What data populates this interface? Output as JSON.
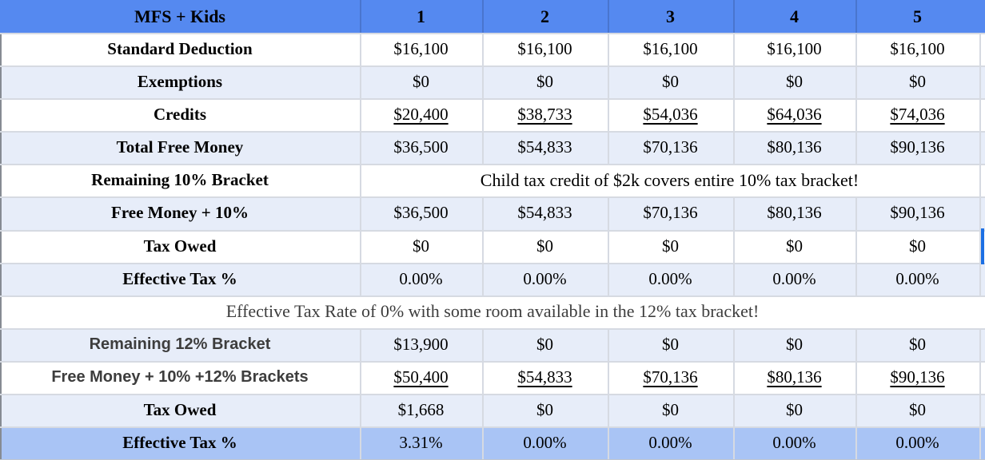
{
  "table": {
    "header": {
      "title": "MFS + Kids",
      "columns": [
        "1",
        "2",
        "3",
        "4",
        "5"
      ]
    },
    "rows": [
      {
        "label": "Standard Deduction",
        "values": [
          "$16,100",
          "$16,100",
          "$16,100",
          "$16,100",
          "$16,100"
        ]
      },
      {
        "label": "Exemptions",
        "values": [
          "$0",
          "$0",
          "$0",
          "$0",
          "$0"
        ]
      },
      {
        "label": "Credits",
        "underlined": true,
        "values": [
          "$20,400",
          "$38,733",
          "$54,036",
          "$64,036",
          "$74,036"
        ]
      },
      {
        "label": "Total Free Money",
        "values": [
          "$36,500",
          "$54,833",
          "$70,136",
          "$80,136",
          "$90,136"
        ]
      },
      {
        "label": "Remaining 10% Bracket",
        "note": "Child tax credit of $2k covers entire 10% tax bracket!"
      },
      {
        "label": "Free Money + 10%",
        "values": [
          "$36,500",
          "$54,833",
          "$70,136",
          "$80,136",
          "$90,136"
        ]
      },
      {
        "label": "Tax Owed",
        "values": [
          "$0",
          "$0",
          "$0",
          "$0",
          "$0"
        ]
      },
      {
        "label": "Effective Tax %",
        "values": [
          "0.00%",
          "0.00%",
          "0.00%",
          "0.00%",
          "0.00%"
        ]
      },
      {
        "full_note": "Effective Tax Rate of 0% with some room available in the 12% tax bracket!"
      },
      {
        "label": "Remaining 12% Bracket",
        "values": [
          "$13,900",
          "$0",
          "$0",
          "$0",
          "$0"
        ]
      },
      {
        "label": "Free Money + 10% +12% Brackets",
        "underlined": true,
        "values": [
          "$50,400",
          "$54,833",
          "$70,136",
          "$80,136",
          "$90,136"
        ]
      },
      {
        "label": "Tax Owed",
        "values": [
          "$1,668",
          "$0",
          "$0",
          "$0",
          "$0"
        ]
      },
      {
        "label": "Effective Tax %",
        "values": [
          "3.31%",
          "0.00%",
          "0.00%",
          "0.00%",
          "0.00%"
        ]
      }
    ]
  },
  "theme": {
    "header_bg": "#5589f0",
    "band_bg": "#e7edf9",
    "highlight_bg": "#a9c4f5",
    "gridline": "#d6dae2",
    "edge": "#868b93",
    "selection_blue": "#1b6fe4",
    "muted_text": "#3d3d3d"
  }
}
